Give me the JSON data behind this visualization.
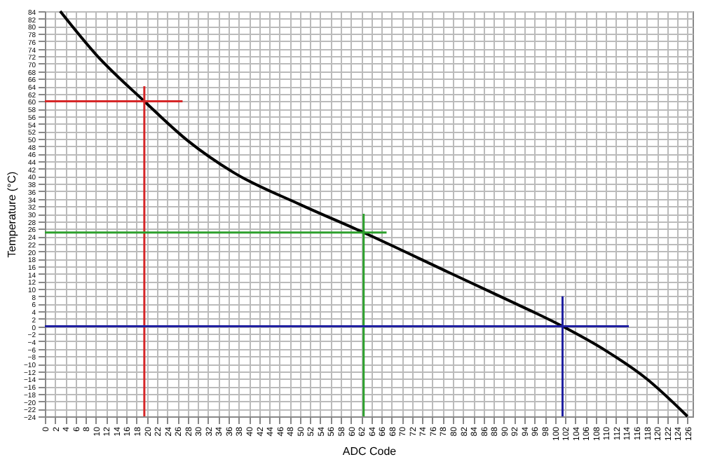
{
  "chart_data": {
    "type": "line",
    "xlabel": "ADC Code",
    "ylabel": "Temperature (°C)",
    "xlim": [
      0,
      127
    ],
    "ylim": [
      -24,
      84
    ],
    "xticks": [
      0,
      2,
      4,
      6,
      8,
      10,
      12,
      14,
      16,
      18,
      20,
      22,
      24,
      26,
      28,
      30,
      32,
      34,
      36,
      38,
      40,
      42,
      44,
      46,
      48,
      50,
      52,
      54,
      56,
      58,
      60,
      62,
      64,
      66,
      68,
      70,
      72,
      74,
      76,
      78,
      80,
      82,
      84,
      86,
      88,
      90,
      92,
      94,
      96,
      98,
      100,
      102,
      104,
      106,
      108,
      110,
      112,
      114,
      116,
      118,
      120,
      122,
      124,
      126
    ],
    "yticks": [
      -24,
      -22,
      -20,
      -18,
      -16,
      -14,
      -12,
      -10,
      -8,
      -6,
      -4,
      -2,
      0,
      2,
      4,
      6,
      8,
      10,
      12,
      14,
      16,
      18,
      20,
      22,
      24,
      26,
      28,
      30,
      32,
      34,
      36,
      38,
      40,
      42,
      44,
      46,
      48,
      50,
      52,
      54,
      56,
      58,
      60,
      62,
      64,
      66,
      68,
      70,
      72,
      74,
      76,
      78,
      80,
      82,
      84
    ],
    "grid": true,
    "line_style": "solid",
    "marker": "none",
    "series": [
      {
        "color": "#000000",
        "x": [
          3,
          10,
          19.5,
          28,
          37,
          50,
          62.5,
          79,
          90,
          101.5,
          110,
          118,
          126
        ],
        "values": [
          84,
          72.5,
          60,
          49.5,
          41,
          32.5,
          25,
          14.5,
          7.5,
          0,
          -6.5,
          -14,
          -24
        ]
      },
      {
        "color": "#d62728",
        "x": [
          0,
          27
        ],
        "values": [
          60,
          60
        ]
      },
      {
        "color": "#d62728",
        "x": [
          19.5,
          19.5
        ],
        "values": [
          -24,
          64
        ]
      },
      {
        "color": "#2ca02c",
        "x": [
          0,
          67
        ],
        "values": [
          25,
          25
        ]
      },
      {
        "color": "#2ca02c",
        "x": [
          62.5,
          62.5
        ],
        "values": [
          -24,
          30
        ]
      },
      {
        "color": "#1f1fa0",
        "x": [
          0,
          114.5
        ],
        "values": [
          0,
          0
        ]
      },
      {
        "color": "#1f1fa0",
        "x": [
          101.5,
          101.5
        ],
        "values": [
          -24,
          8
        ]
      }
    ]
  }
}
